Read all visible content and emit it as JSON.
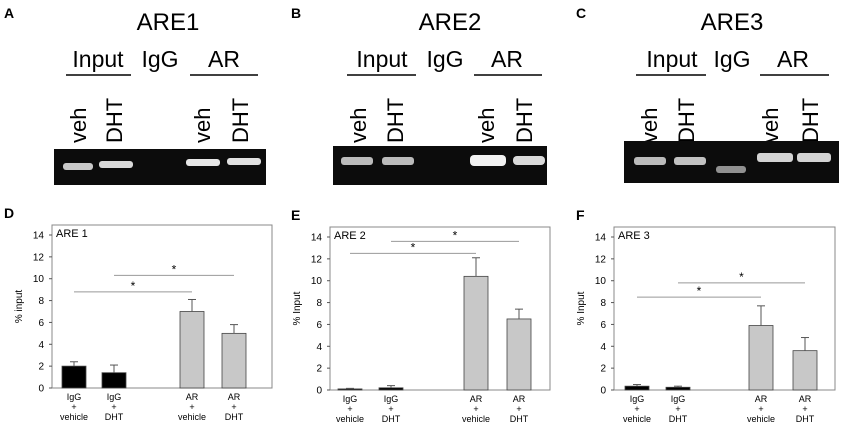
{
  "panels": [
    {
      "letter": "A",
      "title": "ARE1",
      "group_labels": [
        "Input",
        "IgG",
        "AR"
      ],
      "lane_labels": [
        "veh",
        "DHT",
        "veh",
        "DHT"
      ],
      "bands": [
        {
          "lane": "input-veh",
          "intensity": 0.78
        },
        {
          "lane": "input-dht",
          "intensity": 0.85
        },
        {
          "lane": "igg",
          "intensity": 0.0
        },
        {
          "lane": "ar-veh",
          "intensity": 0.9
        },
        {
          "lane": "ar-dht",
          "intensity": 0.88
        }
      ]
    },
    {
      "letter": "B",
      "title": "ARE2",
      "group_labels": [
        "Input",
        "IgG",
        "AR"
      ],
      "lane_labels": [
        "veh",
        "DHT",
        "veh",
        "DHT"
      ],
      "bands": [
        {
          "lane": "input-veh",
          "intensity": 0.72
        },
        {
          "lane": "input-dht",
          "intensity": 0.72
        },
        {
          "lane": "igg",
          "intensity": 0.0
        },
        {
          "lane": "ar-veh",
          "intensity": 0.95
        },
        {
          "lane": "ar-dht",
          "intensity": 0.85
        }
      ]
    },
    {
      "letter": "C",
      "title": "ARE3",
      "group_labels": [
        "Input",
        "IgG",
        "AR"
      ],
      "lane_labels": [
        "veh",
        "DHT",
        "veh",
        "DHT"
      ],
      "bands": [
        {
          "lane": "input-veh",
          "intensity": 0.72
        },
        {
          "lane": "input-dht",
          "intensity": 0.75
        },
        {
          "lane": "igg",
          "intensity": 0.55
        },
        {
          "lane": "ar-veh",
          "intensity": 0.82
        },
        {
          "lane": "ar-dht",
          "intensity": 0.82
        }
      ]
    }
  ],
  "chart_data": [
    {
      "type": "bar",
      "letter": "D",
      "title": "ARE 1",
      "ylabel": "% input",
      "ylim": [
        0,
        14
      ],
      "yticks": [
        0,
        2,
        4,
        6,
        8,
        10,
        12,
        14
      ],
      "categories": [
        [
          "IgG",
          "+",
          "vehicle"
        ],
        [
          "IgG",
          "+",
          "DHT"
        ],
        [
          "AR",
          "+",
          "vehicle"
        ],
        [
          "AR",
          "+",
          "DHT"
        ]
      ],
      "values": [
        2.0,
        1.4,
        7.0,
        5.0
      ],
      "errors": [
        0.4,
        0.7,
        1.1,
        0.8
      ],
      "colors": [
        "#000000",
        "#000000",
        "#c8c8c8",
        "#c8c8c8"
      ],
      "significance": [
        {
          "from": 0,
          "to": 2,
          "y": 8.8,
          "label": "*"
        },
        {
          "from": 1,
          "to": 3,
          "y": 10.3,
          "label": "*"
        }
      ]
    },
    {
      "type": "bar",
      "letter": "E",
      "title": "ARE 2",
      "ylabel": "% Input",
      "ylim": [
        0,
        14
      ],
      "yticks": [
        0,
        2,
        4,
        6,
        8,
        10,
        12,
        14
      ],
      "categories": [
        [
          "IgG",
          "+",
          "vehicle"
        ],
        [
          "IgG",
          "+",
          "DHT"
        ],
        [
          "AR",
          "+",
          "vehicle"
        ],
        [
          "AR",
          "+",
          "DHT"
        ]
      ],
      "values": [
        0.1,
        0.2,
        10.4,
        6.5
      ],
      "errors": [
        0.05,
        0.2,
        1.7,
        0.9
      ],
      "colors": [
        "#000000",
        "#000000",
        "#c8c8c8",
        "#c8c8c8"
      ],
      "significance": [
        {
          "from": 0,
          "to": 2,
          "y": 12.5,
          "label": "*"
        },
        {
          "from": 1,
          "to": 3,
          "y": 13.6,
          "label": "*"
        }
      ]
    },
    {
      "type": "bar",
      "letter": "F",
      "title": "ARE 3",
      "ylabel": "% Input",
      "ylim": [
        0,
        14
      ],
      "yticks": [
        0,
        2,
        4,
        6,
        8,
        10,
        12,
        14
      ],
      "categories": [
        [
          "IgG",
          "+",
          "vehicle"
        ],
        [
          "IgG",
          "+",
          "DHT"
        ],
        [
          "AR",
          "+",
          "vehicle"
        ],
        [
          "AR",
          "+",
          "DHT"
        ]
      ],
      "values": [
        0.35,
        0.25,
        5.9,
        3.6
      ],
      "errors": [
        0.15,
        0.1,
        1.8,
        1.2
      ],
      "colors": [
        "#000000",
        "#000000",
        "#c8c8c8",
        "#c8c8c8"
      ],
      "significance": [
        {
          "from": 0,
          "to": 2,
          "y": 8.5,
          "label": "*"
        },
        {
          "from": 1,
          "to": 3,
          "y": 9.8,
          "label": "*"
        }
      ]
    }
  ]
}
